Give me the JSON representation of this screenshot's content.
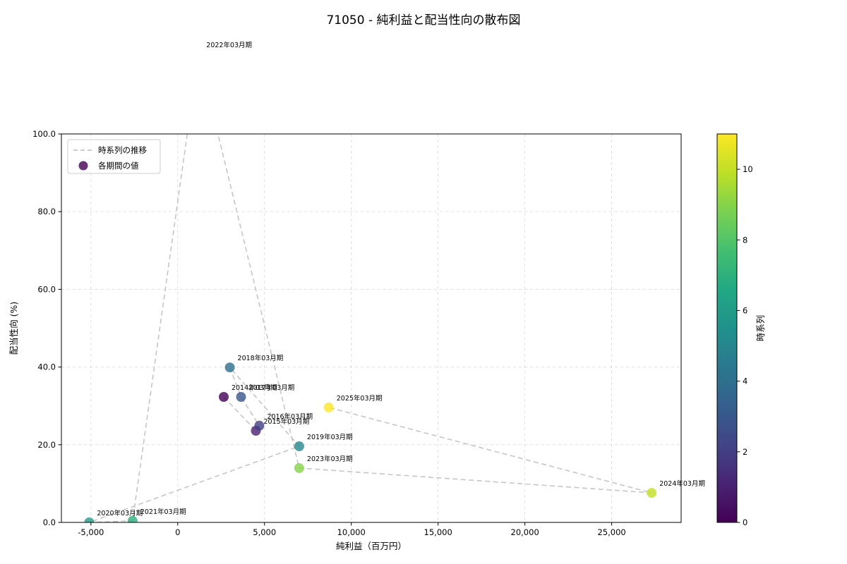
{
  "chart_data": {
    "type": "scatter",
    "title": "71050 - 純利益と配当性向の散布図",
    "xlabel": "純利益（百万円）",
    "ylabel": "配当性向 (%)",
    "xlim": [
      -6700,
      29000
    ],
    "ylim": [
      0,
      100
    ],
    "xticks": [
      -5000,
      0,
      5000,
      10000,
      15000,
      20000,
      25000
    ],
    "xtick_labels": [
      "-5,000",
      "0",
      "5,000",
      "10,000",
      "15,000",
      "20,000",
      "25,000"
    ],
    "yticks": [
      0,
      20,
      40,
      60,
      80,
      100
    ],
    "ytick_labels": [
      "0.0",
      "20.0",
      "40.0",
      "60.0",
      "80.0",
      "100.0"
    ],
    "grid": true,
    "legend": {
      "position": "upper-left",
      "entries": [
        {
          "type": "dashed-line",
          "label": "時系列の推移"
        },
        {
          "type": "dot",
          "label": "各期間の値"
        }
      ]
    },
    "colorbar": {
      "label": "時系列",
      "vmin": 0,
      "vmax": 11,
      "ticks": [
        0,
        2,
        4,
        6,
        8,
        10
      ],
      "tick_labels": [
        "0",
        "2",
        "4",
        "6",
        "8",
        "10"
      ],
      "colormap": "viridis"
    },
    "colormap_stops": [
      "#440154",
      "#482475",
      "#414487",
      "#355f8d",
      "#2a788e",
      "#21918c",
      "#22a884",
      "#44bf70",
      "#7ad151",
      "#bddf26",
      "#fde725"
    ],
    "colors": {
      "trajectory": "#bcbcbc",
      "grid": "#c9c9c9",
      "axis": "#000000",
      "legend_border": "#cccccc"
    },
    "points": [
      {
        "label": "2014年03月期",
        "x": 2650,
        "y": 32.3,
        "t": 0
      },
      {
        "label": "2015年03月期",
        "x": 4500,
        "y": 23.6,
        "t": 1
      },
      {
        "label": "2016年03月期",
        "x": 4700,
        "y": 24.9,
        "t": 2
      },
      {
        "label": "2017年03月期",
        "x": 3650,
        "y": 32.3,
        "t": 3
      },
      {
        "label": "2018年03月期",
        "x": 3000,
        "y": 39.9,
        "t": 4
      },
      {
        "label": "2019年03月期",
        "x": 7000,
        "y": 19.6,
        "t": 5
      },
      {
        "label": "2020年03月期",
        "x": -5100,
        "y": 0.0,
        "t": 6
      },
      {
        "label": "2021年03月期",
        "x": -2600,
        "y": 0.4,
        "t": 7
      },
      {
        "label": "2022年03月期",
        "x": 1200,
        "y": 120.5,
        "t": 8
      },
      {
        "label": "2023年03月期",
        "x": 7000,
        "y": 14.0,
        "t": 9
      },
      {
        "label": "2024年03月期",
        "x": 27300,
        "y": 7.6,
        "t": 10
      },
      {
        "label": "2025年03月期",
        "x": 8700,
        "y": 29.6,
        "t": 11
      }
    ]
  }
}
